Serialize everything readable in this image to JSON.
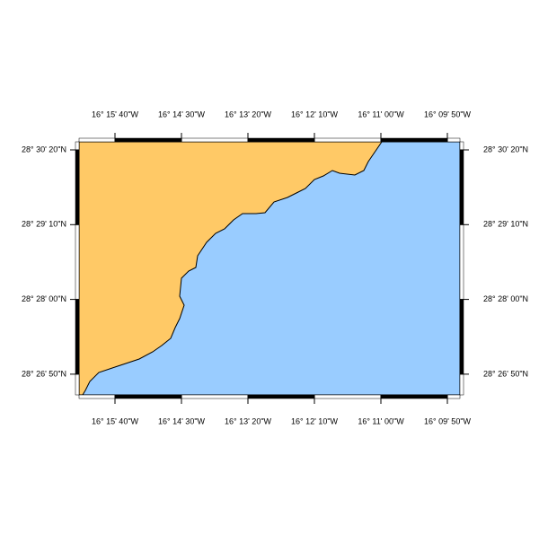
{
  "map": {
    "x_labels": [
      "16° 15' 40\"W",
      "16° 14' 30\"W",
      "16° 13' 20\"W",
      "16° 12' 10\"W",
      "16° 11' 00\"W",
      "16° 09' 50\"W"
    ],
    "y_labels": [
      "28° 30' 20\"N",
      "28° 29' 10\"N",
      "28° 28' 00\"N",
      "28° 26' 50\"N"
    ]
  }
}
